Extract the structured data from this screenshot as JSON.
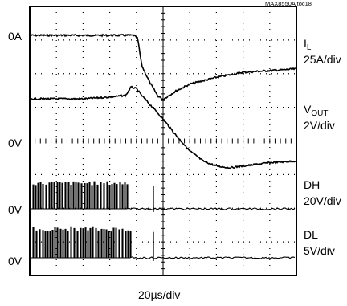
{
  "chart_data": {
    "type": "line",
    "tag": "MAX8550A toc18",
    "x_label": "20µs/div",
    "grid": true,
    "divisions": {
      "x": 10,
      "y": 8
    },
    "left_labels": [
      "0A",
      "0V",
      "0V",
      "0V"
    ],
    "series": [
      {
        "id": "IL",
        "name_main": "I",
        "name_sub": "L",
        "scale": "25A/div",
        "description": "Load current: flat, sharp drop near 4.4 div, dip at ~4.9 div, slow recovery",
        "x_div": [
          0,
          1,
          2,
          3,
          3.9,
          4.05,
          4.2,
          4.5,
          4.8,
          5.0,
          5.5,
          6,
          7,
          8,
          9,
          10
        ],
        "y_div": [
          0,
          0,
          0,
          0,
          0,
          -0.1,
          -0.9,
          -1.4,
          -1.8,
          -1.9,
          -1.65,
          -1.45,
          -1.25,
          -1.1,
          -1.05,
          -1.0
        ]
      },
      {
        "id": "VOUT",
        "name_main": "V",
        "name_sub": "OUT",
        "scale": "2V/div",
        "description": "Output voltage: small overshoot at step then droop with slow recovery",
        "x_div": [
          0,
          1,
          2,
          3,
          3.6,
          3.8,
          4.0,
          4.2,
          4.6,
          5.0,
          5.5,
          6.0,
          6.5,
          7.0,
          7.5,
          8.0,
          9.0,
          10
        ],
        "y_div": [
          0,
          0,
          0,
          0.05,
          0.1,
          0.35,
          0.3,
          0.1,
          -0.25,
          -0.6,
          -1.1,
          -1.55,
          -1.85,
          -2.0,
          -2.05,
          -2.0,
          -1.9,
          -1.85
        ]
      },
      {
        "id": "DH",
        "name_main": "DH",
        "name_sub": "",
        "scale": "20V/div",
        "description": "High-side gate drive: pulse train until ~3.7 div, then low"
      },
      {
        "id": "DL",
        "name_main": "DL",
        "name_sub": "",
        "scale": "5V/div",
        "description": "Low-side gate drive: pulse train until ~3.8 div, then low"
      }
    ]
  }
}
